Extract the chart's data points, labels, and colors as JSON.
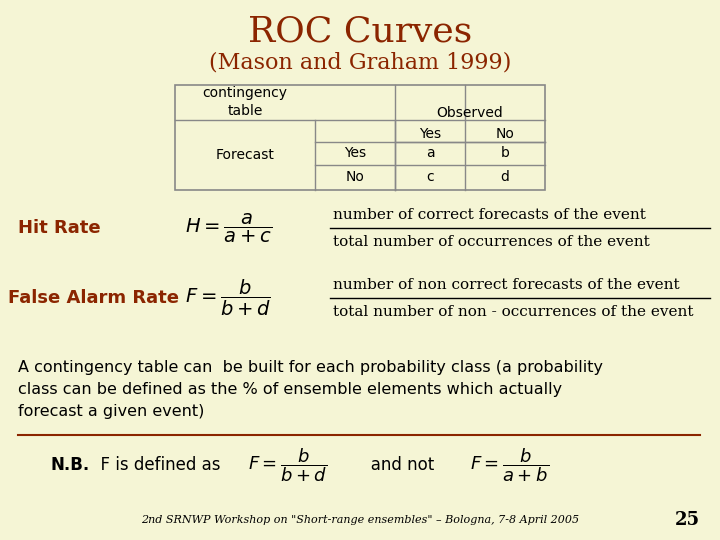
{
  "background_color": "#f5f5d5",
  "title": "ROC Curves",
  "subtitle": "(Mason and Graham 1999)",
  "title_color": "#8B2500",
  "title_fontsize": 26,
  "subtitle_fontsize": 16,
  "hit_rate_label": "Hit Rate",
  "false_alarm_label": "False Alarm Rate",
  "label_color": "#8B2500",
  "text_color": "#000000",
  "footer_line_color": "#8B2500",
  "slide_number": "25",
  "footer_italic": "2nd SRNWP Workshop on \"Short-range ensembles\" – Bologna, 7-8 April 2005"
}
